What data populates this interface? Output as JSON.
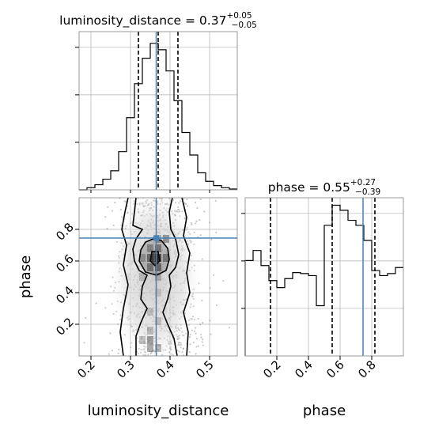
{
  "chart_data": [
    {
      "panel": "marginal-luminosity_distance",
      "type": "histogram",
      "title_base": "luminosity_distance = 0.37",
      "title_plus": "+0.05",
      "title_minus": "−0.05",
      "x_range": [
        0.17,
        0.57
      ],
      "bin_edges": [
        0.17,
        0.19,
        0.21,
        0.23,
        0.25,
        0.27,
        0.29,
        0.31,
        0.33,
        0.35,
        0.37,
        0.39,
        0.41,
        0.43,
        0.45,
        0.47,
        0.49,
        0.51,
        0.53,
        0.55,
        0.57
      ],
      "counts": [
        0.0,
        0.05,
        0.12,
        0.25,
        0.45,
        0.9,
        1.7,
        2.5,
        3.1,
        3.45,
        3.3,
        2.8,
        2.1,
        1.35,
        0.82,
        0.4,
        0.2,
        0.1,
        0.05,
        0.02
      ],
      "quantiles": [
        0.32,
        0.37,
        0.42
      ],
      "truth": 0.365,
      "grid": true,
      "color": "#000000",
      "truth_color": "#4682b4"
    },
    {
      "panel": "joint-luminosity_distance-phase",
      "type": "2d-histogram-contour",
      "x_range": [
        0.17,
        0.57
      ],
      "y_range": [
        0.0,
        1.0
      ],
      "x_ticks": [
        "0.2",
        "0.3",
        "0.4",
        "0.5"
      ],
      "y_ticks": [
        "0.2",
        "0.4",
        "0.6",
        "0.8"
      ],
      "xlabel": "luminosity_distance",
      "ylabel": "phase",
      "truth": {
        "x": 0.365,
        "y": 0.745
      },
      "grid": true,
      "truth_color": "#4682b4"
    },
    {
      "panel": "marginal-phase",
      "type": "histogram",
      "title_base": "phase = 0.55",
      "title_plus": "+0.27",
      "title_minus": "−0.39",
      "x_range": [
        0.0,
        1.0
      ],
      "x_ticks": [
        "0.2",
        "0.4",
        "0.6",
        "0.8"
      ],
      "xlabel": "phase",
      "bin_edges": [
        0.0,
        0.05,
        0.1,
        0.15,
        0.2,
        0.25,
        0.3,
        0.35,
        0.4,
        0.45,
        0.5,
        0.55,
        0.6,
        0.65,
        0.7,
        0.75,
        0.8,
        0.85,
        0.9,
        0.95,
        1.0
      ],
      "counts": [
        0.95,
        1.05,
        0.9,
        0.75,
        0.68,
        0.77,
        0.83,
        0.82,
        0.8,
        0.5,
        1.3,
        1.5,
        1.45,
        1.35,
        1.3,
        1.15,
        0.85,
        0.8,
        0.82,
        0.88
      ],
      "quantiles": [
        0.16,
        0.55,
        0.82
      ],
      "truth": 0.745,
      "grid": true,
      "color": "#000000",
      "truth_color": "#4682b4"
    }
  ]
}
